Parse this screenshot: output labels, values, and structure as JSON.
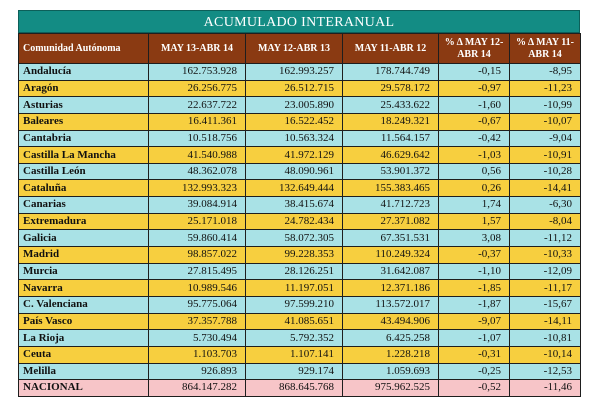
{
  "table": {
    "title": "ACUMULADO INTERANUAL",
    "headers": [
      "Comunidad Autónoma",
      "MAY 13-ABR 14",
      "MAY 12-ABR 13",
      "MAY 11-ABR 12",
      "% Δ MAY 12-ABR 14",
      "% Δ MAY 11-ABR 14"
    ],
    "rows": [
      [
        "Andalucía",
        "162.753.928",
        "162.993.257",
        "178.744.749",
        "-0,15",
        "-8,95"
      ],
      [
        "Aragón",
        "26.256.775",
        "26.512.715",
        "29.578.172",
        "-0,97",
        "-11,23"
      ],
      [
        "Asturias",
        "22.637.722",
        "23.005.890",
        "25.433.622",
        "-1,60",
        "-10,99"
      ],
      [
        "Baleares",
        "16.411.361",
        "16.522.452",
        "18.249.321",
        "-0,67",
        "-10,07"
      ],
      [
        "Cantabria",
        "10.518.756",
        "10.563.324",
        "11.564.157",
        "-0,42",
        "-9,04"
      ],
      [
        "Castilla La Mancha",
        "41.540.988",
        "41.972.129",
        "46.629.642",
        "-1,03",
        "-10,91"
      ],
      [
        "Castilla León",
        "48.362.078",
        "48.090.961",
        "53.901.372",
        "0,56",
        "-10,28"
      ],
      [
        "Cataluña",
        "132.993.323",
        "132.649.444",
        "155.383.465",
        "0,26",
        "-14,41"
      ],
      [
        "Canarias",
        "39.084.914",
        "38.415.674",
        "41.712.723",
        "1,74",
        "-6,30"
      ],
      [
        "Extremadura",
        "25.171.018",
        "24.782.434",
        "27.371.082",
        "1,57",
        "-8,04"
      ],
      [
        "Galicia",
        "59.860.414",
        "58.072.305",
        "67.351.531",
        "3,08",
        "-11,12"
      ],
      [
        "Madrid",
        "98.857.022",
        "99.228.353",
        "110.249.324",
        "-0,37",
        "-10,33"
      ],
      [
        "Murcia",
        "27.815.495",
        "28.126.251",
        "31.642.087",
        "-1,10",
        "-12,09"
      ],
      [
        "Navarra",
        "10.989.546",
        "11.197.051",
        "12.371.186",
        "-1,85",
        "-11,17"
      ],
      [
        "C. Valenciana",
        "95.775.064",
        "97.599.210",
        "113.572.017",
        "-1,87",
        "-15,67"
      ],
      [
        "País Vasco",
        "37.357.788",
        "41.085.651",
        "43.494.906",
        "-9,07",
        "-14,11"
      ],
      [
        "La Rioja",
        "5.730.494",
        "5.792.352",
        "6.425.258",
        "-1,07",
        "-10,81"
      ],
      [
        "Ceuta",
        "1.103.703",
        "1.107.141",
        "1.228.218",
        "-0,31",
        "-10,14"
      ],
      [
        "Melilla",
        "926.893",
        "929.174",
        "1.059.693",
        "-0,25",
        "-12,53"
      ]
    ],
    "total": [
      "NACIONAL",
      "864.147.282",
      "868.645.768",
      "975.962.525",
      "-0,52",
      "-11,46"
    ]
  },
  "colors": {
    "title_bg": "#138c84",
    "header_bg": "#8a3a12",
    "row_cyan": "#a9e2e6",
    "row_yellow": "#f7cf3f",
    "total_pink": "#f7c5c8"
  }
}
